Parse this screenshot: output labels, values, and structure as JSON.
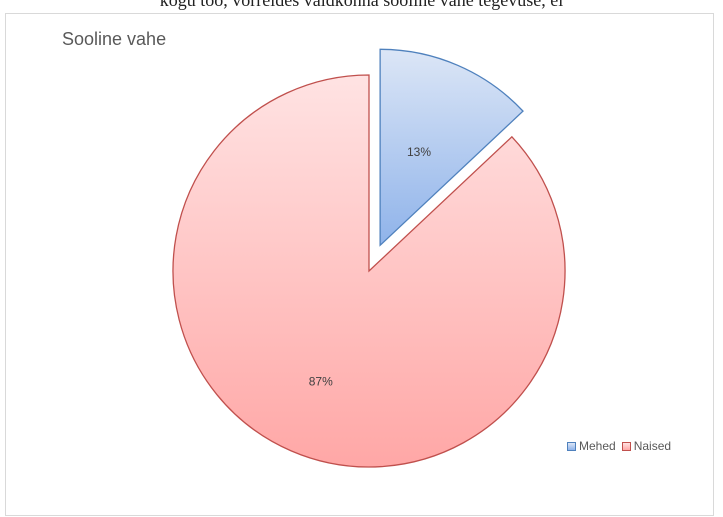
{
  "page": {
    "caption": "kogu töö, võrreldes valdkonna sooline vahe tegevuse, ei"
  },
  "chart_data": {
    "type": "pie",
    "title": "Sooline vahe",
    "series": [
      {
        "values": [
          13,
          87
        ],
        "labels": [
          "13%",
          "87%"
        ]
      }
    ],
    "categories": [
      "Mehed",
      "Naised"
    ],
    "exploded": [
      "Mehed"
    ],
    "legend": "bottom-right",
    "colors": {
      "Mehed": {
        "fill_top": "#dce6f6",
        "fill_bottom": "#8fb3ea",
        "stroke": "#4f81bd"
      },
      "Naised": {
        "fill_top": "#ffe3e3",
        "fill_bottom": "#ffa7a6",
        "stroke": "#c0504d"
      }
    }
  }
}
